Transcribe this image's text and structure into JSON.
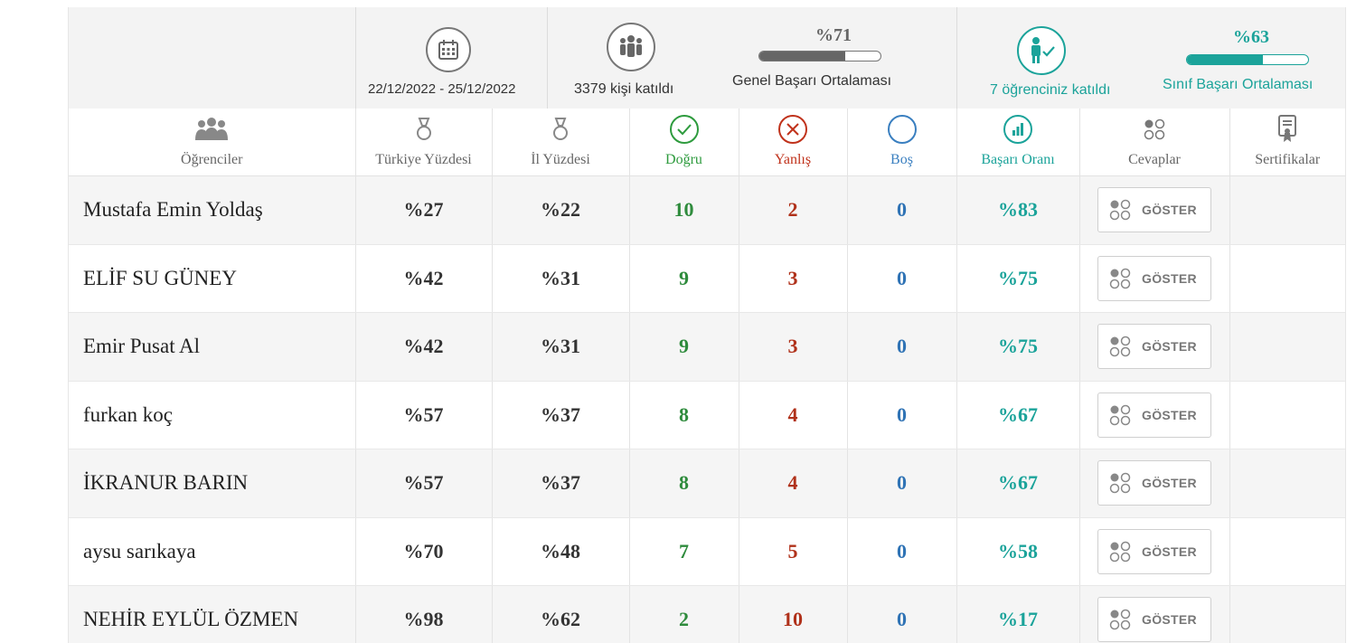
{
  "summary": {
    "date_range": "22/12/2022  - 25/12/2022",
    "participants": "3379 kişi katıldı",
    "general_pct": "%71",
    "general_fill": 0.71,
    "general_label": "Genel Başarı Ortalaması",
    "your_students": "7 öğrenciniz katıldı",
    "class_pct": "%63",
    "class_fill": 0.63,
    "class_label": "Sınıf Başarı Ortalaması"
  },
  "columns": {
    "students": "Öğrenciler",
    "turkey": "Türkiye Yüzdesi",
    "province": "İl Yüzdesi",
    "correct": "Doğru",
    "wrong": "Yanlış",
    "empty": "Boş",
    "success": "Başarı Oranı",
    "answers": "Cevaplar",
    "certificates": "Sertifikalar"
  },
  "show_button_label": "GÖSTER",
  "rows": [
    {
      "name": "Mustafa Emin Yoldaş",
      "turkey": "%27",
      "province": "%22",
      "correct": "10",
      "wrong": "2",
      "empty": "0",
      "success": "%83"
    },
    {
      "name": "ELİF SU GÜNEY",
      "turkey": "%42",
      "province": "%31",
      "correct": "9",
      "wrong": "3",
      "empty": "0",
      "success": "%75"
    },
    {
      "name": "Emir Pusat Al",
      "turkey": "%42",
      "province": "%31",
      "correct": "9",
      "wrong": "3",
      "empty": "0",
      "success": "%75"
    },
    {
      "name": "furkan koç",
      "turkey": "%57",
      "province": "%37",
      "correct": "8",
      "wrong": "4",
      "empty": "0",
      "success": "%67"
    },
    {
      "name": "İKRANUR BARIN",
      "turkey": "%57",
      "province": "%37",
      "correct": "8",
      "wrong": "4",
      "empty": "0",
      "success": "%67"
    },
    {
      "name": "aysu sarıkaya",
      "turkey": "%70",
      "province": "%48",
      "correct": "7",
      "wrong": "5",
      "empty": "0",
      "success": "%58"
    },
    {
      "name": "NEHİR EYLÜL ÖZMEN",
      "turkey": "%98",
      "province": "%62",
      "correct": "2",
      "wrong": "10",
      "empty": "0",
      "success": "%17"
    }
  ],
  "colors": {
    "teal": "#1ba39a",
    "green": "#2e8b3c",
    "red": "#b0311a",
    "blue": "#2f73b5",
    "gray_bar": "#666666"
  },
  "icons": {
    "date": "calendar-icon",
    "participants": "group-icon",
    "your_students": "student-check-icon",
    "students": "students-icon",
    "turkey": "medal-icon",
    "province": "medal-icon",
    "correct": "check-circle-icon",
    "wrong": "x-circle-icon",
    "empty": "empty-circle-icon",
    "success": "chart-circle-icon",
    "answers": "answer-dots-icon",
    "certificates": "certificate-icon"
  }
}
